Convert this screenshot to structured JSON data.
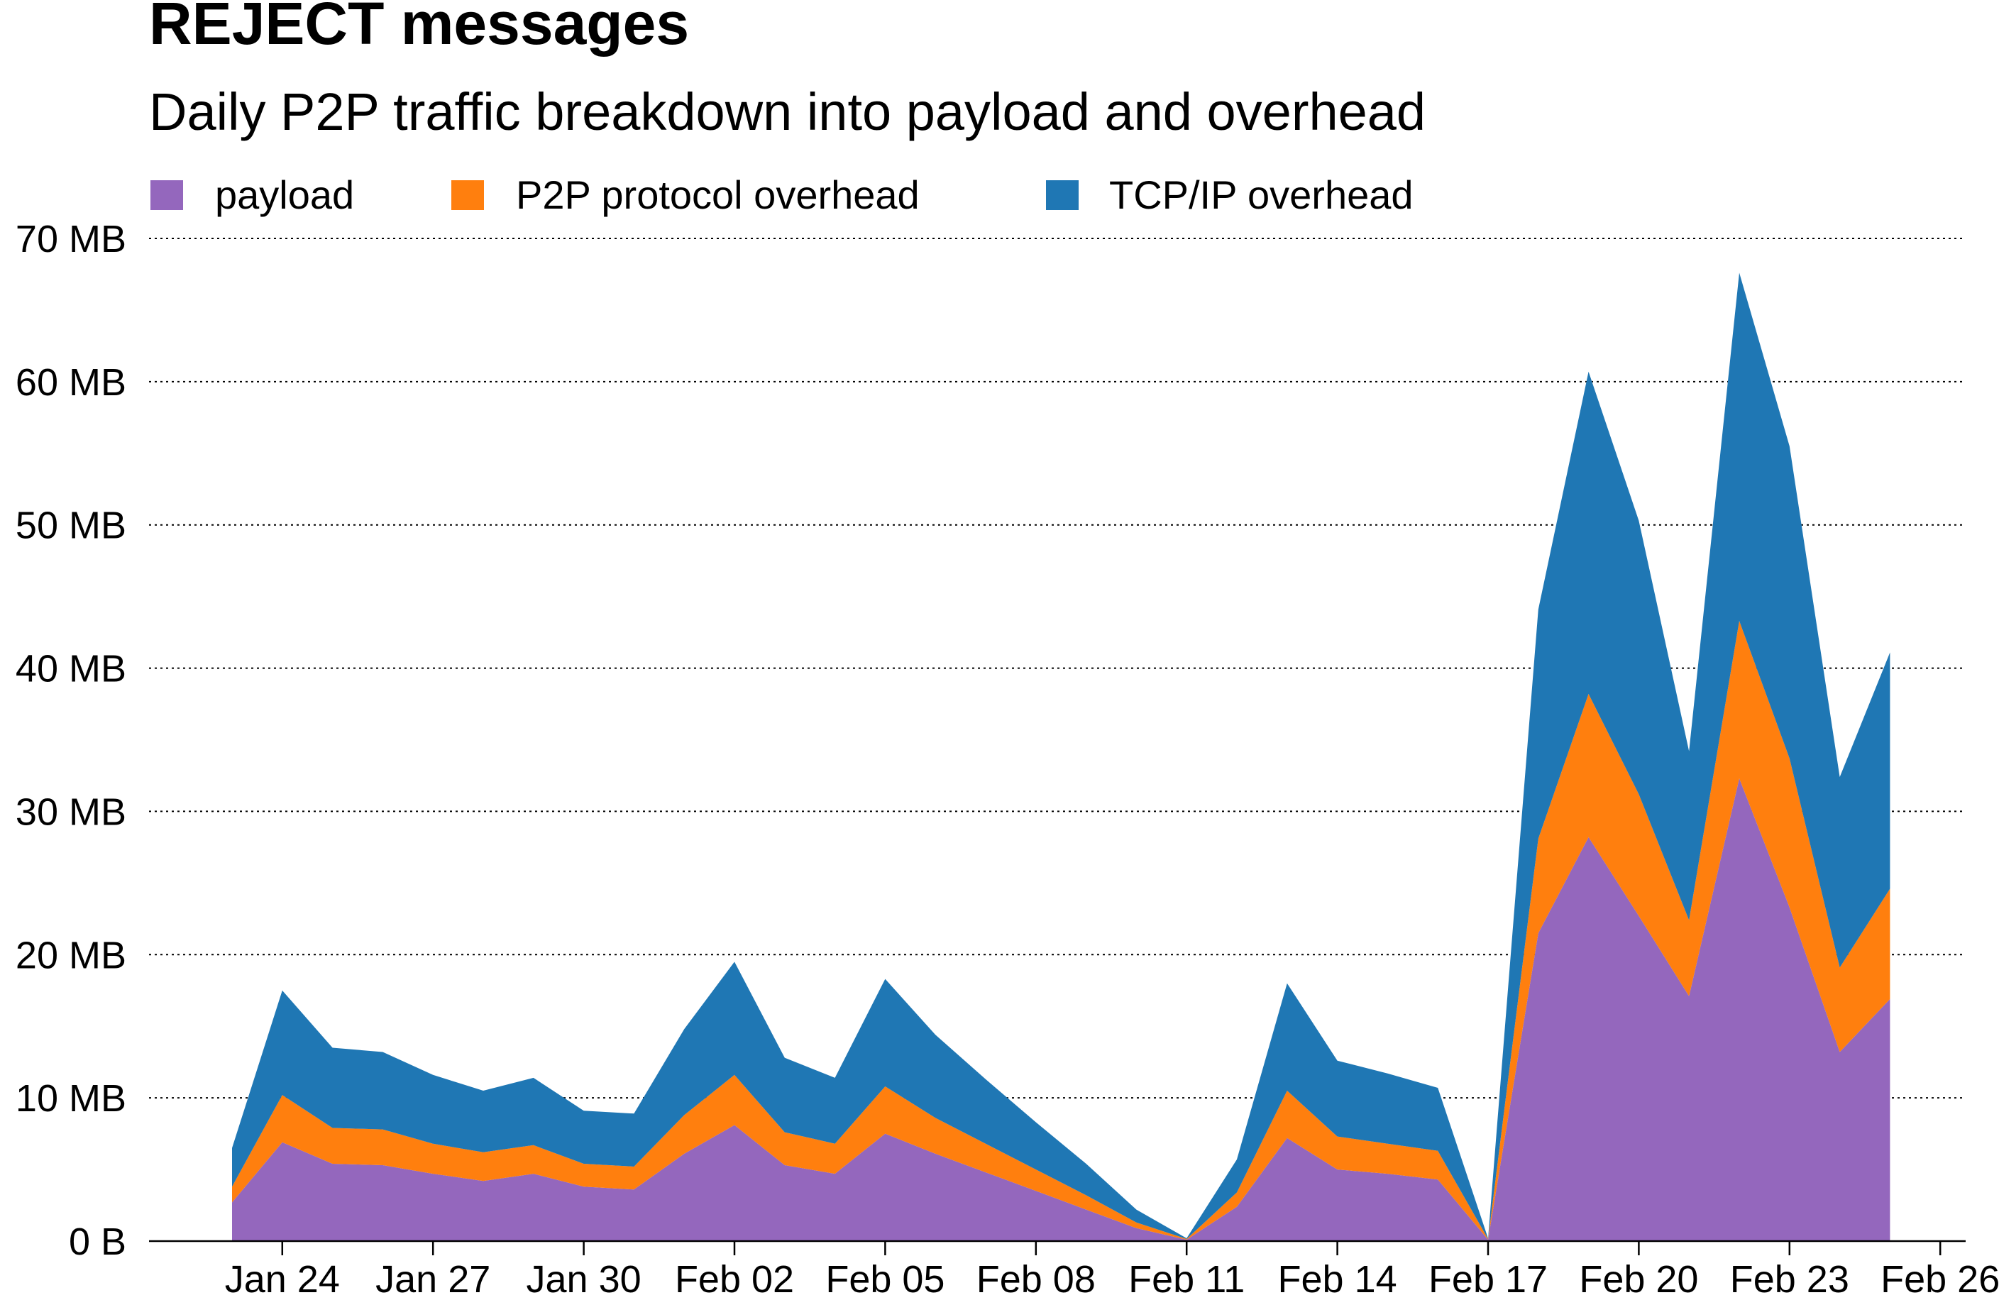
{
  "chart_data": {
    "type": "area",
    "stacked": true,
    "title": "REJECT messages",
    "subtitle": "Daily P2P traffic breakdown into payload and overhead",
    "xlabel": "",
    "ylabel": "",
    "legend": "top-left",
    "grid": "horizontal dotted",
    "ylim": [
      0,
      70
    ],
    "y_unit": "MB",
    "y_ticks": [
      0,
      10,
      20,
      30,
      40,
      50,
      60,
      70
    ],
    "y_tick_labels": [
      "0 B",
      "10 MB",
      "20 MB",
      "30 MB",
      "40 MB",
      "50 MB",
      "60 MB",
      "70 MB"
    ],
    "x_ticks": [
      "Jan 24",
      "Jan 27",
      "Jan 30",
      "Feb 02",
      "Feb 05",
      "Feb 08",
      "Feb 11",
      "Feb 14",
      "Feb 17",
      "Feb 20",
      "Feb 23",
      "Feb 26"
    ],
    "x": [
      "Jan 23",
      "Jan 24",
      "Jan 25",
      "Jan 26",
      "Jan 27",
      "Jan 28",
      "Jan 29",
      "Jan 30",
      "Jan 31",
      "Feb 01",
      "Feb 02",
      "Feb 03",
      "Feb 04",
      "Feb 05",
      "Feb 06",
      "Feb 07",
      "Feb 08",
      "Feb 09",
      "Feb 10",
      "Feb 11",
      "Feb 12",
      "Feb 13",
      "Feb 14",
      "Feb 15",
      "Feb 16",
      "Feb 17",
      "Feb 18",
      "Feb 19",
      "Feb 20",
      "Feb 21",
      "Feb 22",
      "Feb 23",
      "Feb 24",
      "Feb 25"
    ],
    "series": [
      {
        "name": "payload",
        "color": "#9467bd",
        "values": [
          2.7,
          6.9,
          5.4,
          5.3,
          4.7,
          4.2,
          4.7,
          3.8,
          3.6,
          6.1,
          8.1,
          5.3,
          4.7,
          7.5,
          6.1,
          4.8,
          3.5,
          2.2,
          0.9,
          0.1,
          2.4,
          7.2,
          5.0,
          4.7,
          4.3,
          0.1,
          21.5,
          28.2,
          22.7,
          17.1,
          32.3,
          23.3,
          13.2,
          16.9
        ]
      },
      {
        "name": "P2P protocol overhead",
        "color": "#ff7f0e",
        "values": [
          1.1,
          3.3,
          2.5,
          2.5,
          2.1,
          2.0,
          2.0,
          1.6,
          1.6,
          2.7,
          3.5,
          2.3,
          2.1,
          3.3,
          2.5,
          2.0,
          1.5,
          1.0,
          0.4,
          0.05,
          1.0,
          3.3,
          2.3,
          2.1,
          2.0,
          0.05,
          6.6,
          10.0,
          8.5,
          5.3,
          11.0,
          10.4,
          5.9,
          7.7
        ]
      },
      {
        "name": "TCP/IP overhead",
        "color": "#1f77b4",
        "values": [
          2.7,
          7.3,
          5.6,
          5.4,
          4.8,
          4.3,
          4.7,
          3.7,
          3.7,
          6.0,
          7.9,
          5.2,
          4.6,
          7.5,
          5.8,
          4.5,
          3.3,
          2.2,
          0.9,
          0.05,
          2.3,
          7.5,
          5.3,
          4.9,
          4.4,
          0.05,
          16.0,
          22.5,
          19.1,
          11.8,
          24.3,
          21.8,
          13.3,
          16.5
        ]
      }
    ]
  }
}
